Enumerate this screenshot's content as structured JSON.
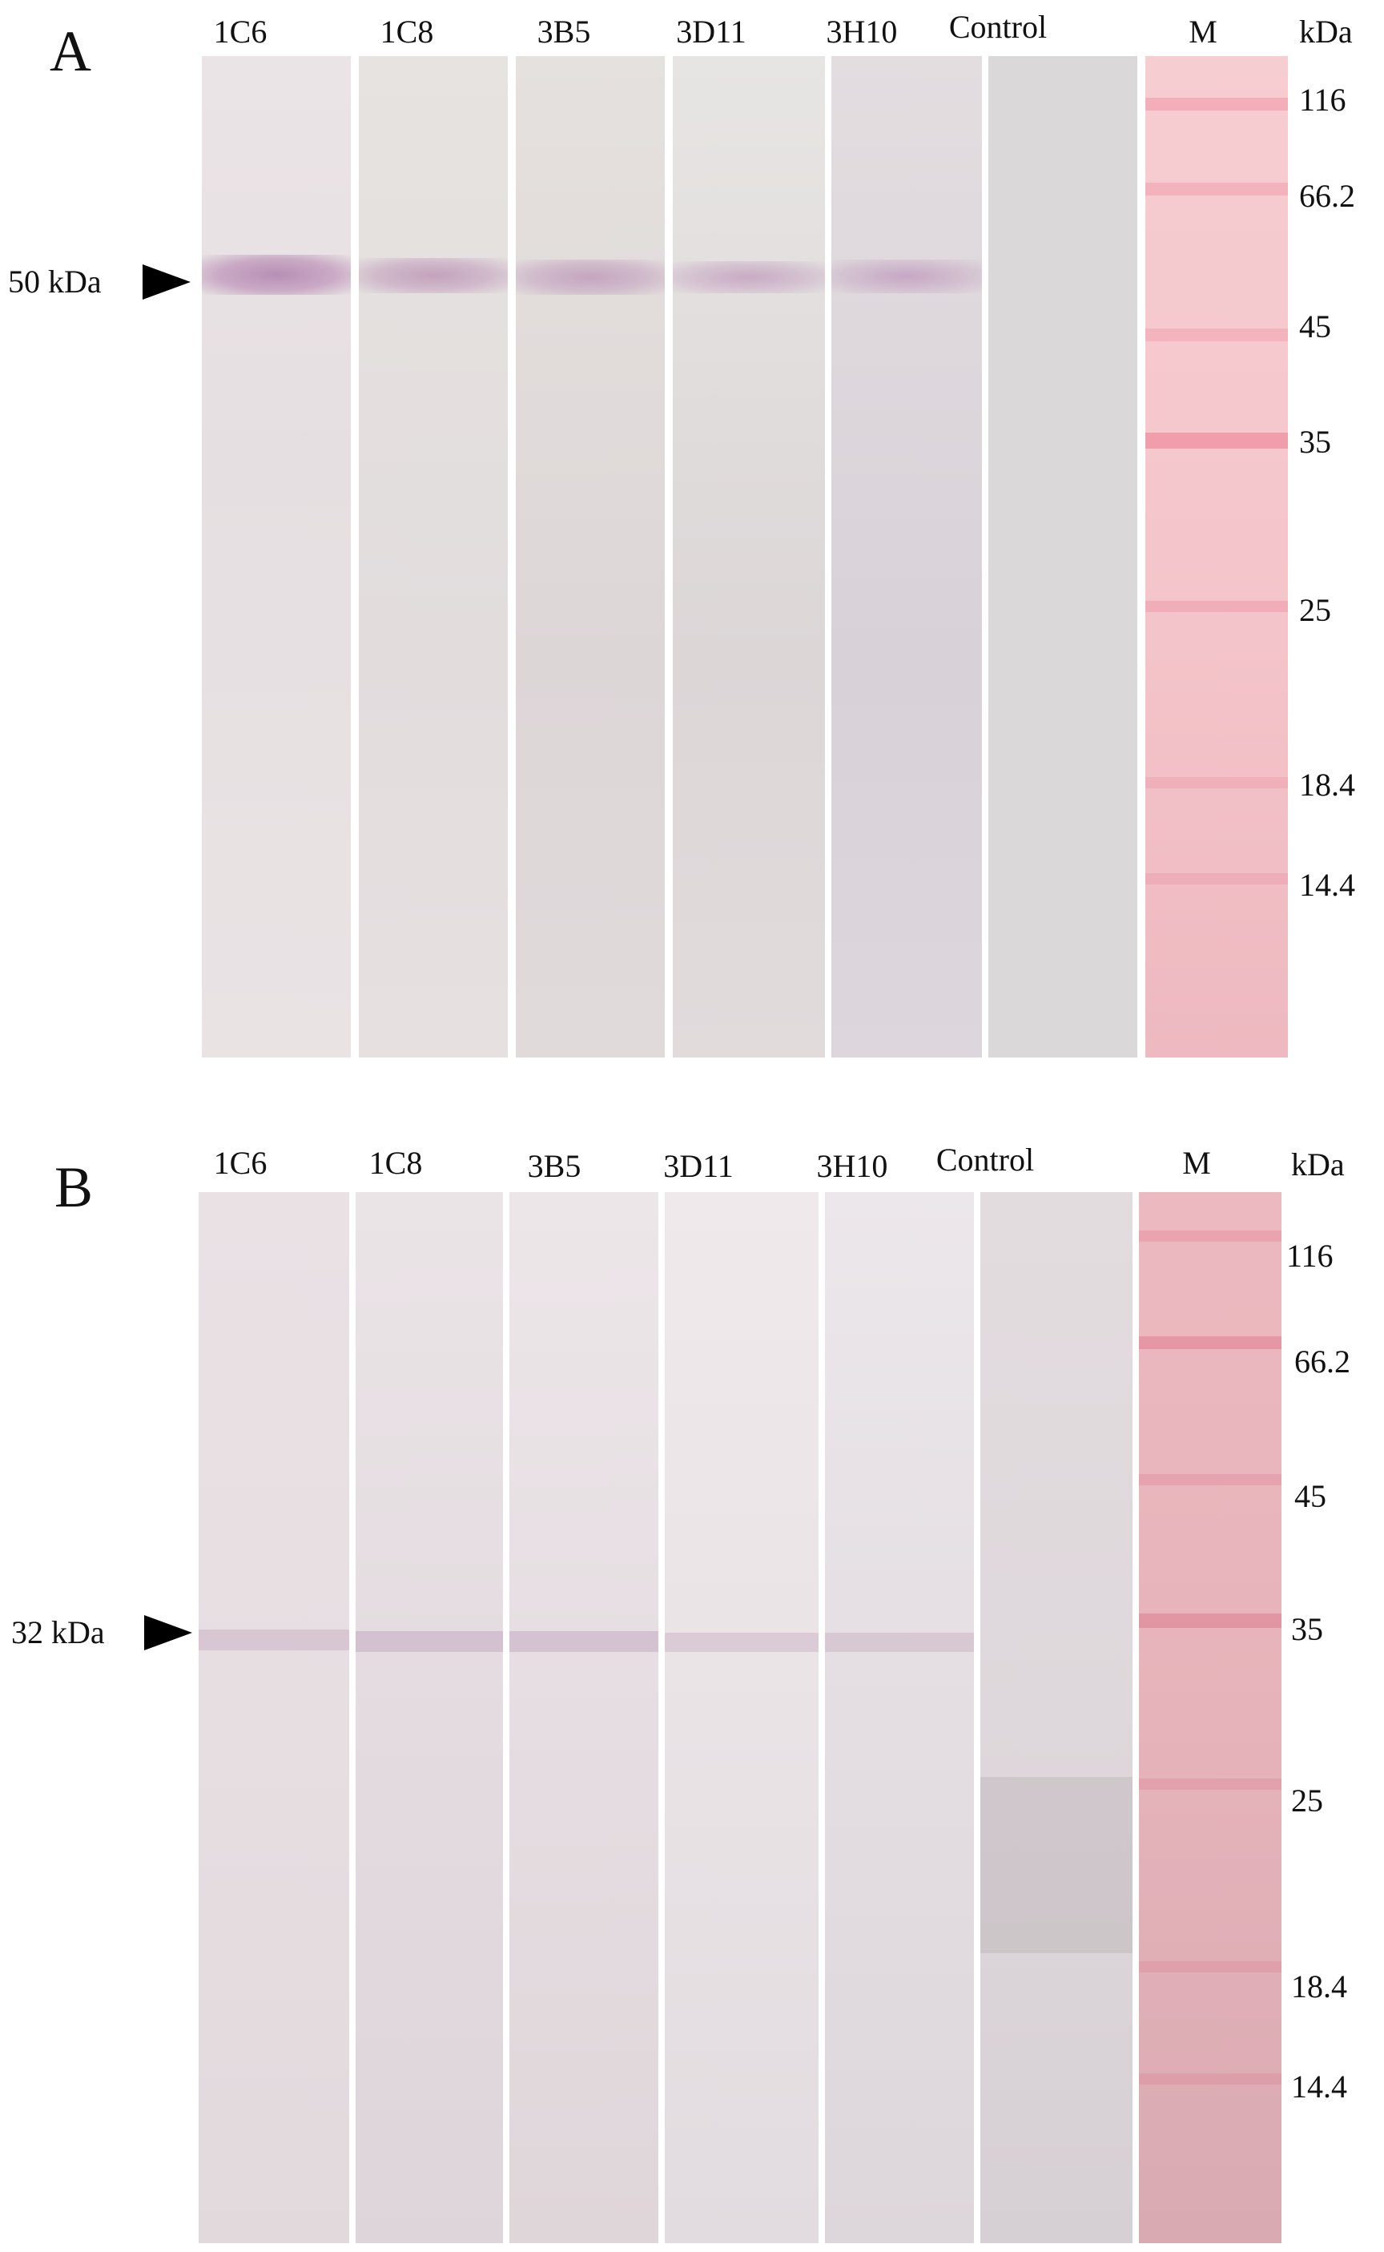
{
  "panels": [
    {
      "letter": "A",
      "lanes": [
        "1C6",
        "1C8",
        "3B5",
        "3D11",
        "3H10",
        "Control",
        "M"
      ],
      "unit_label": "kDa",
      "markers": [
        "116",
        "66.2",
        "45",
        "35",
        "25",
        "18.4",
        "14.4"
      ],
      "arrow_label": "50  kDa"
    },
    {
      "letter": "B",
      "lanes": [
        "1C6",
        "1C8",
        "3B5",
        "3D11",
        "3H10",
        "Control",
        "M"
      ],
      "unit_label": "kDa",
      "markers": [
        "116",
        "66.2",
        "45",
        "35",
        "25",
        "18.4",
        "14.4"
      ],
      "arrow_label": "32 kDa"
    }
  ],
  "colors": {
    "strip_base": "#e4dedf",
    "strip_light": "#ece8e8",
    "control_strip": "#d9d7d8",
    "marker_strip": "#f3c4c8",
    "marker_strip_b": "#e9b7bd",
    "band_purple": "#c9a6c6",
    "marker_band": "#ef9fac"
  }
}
